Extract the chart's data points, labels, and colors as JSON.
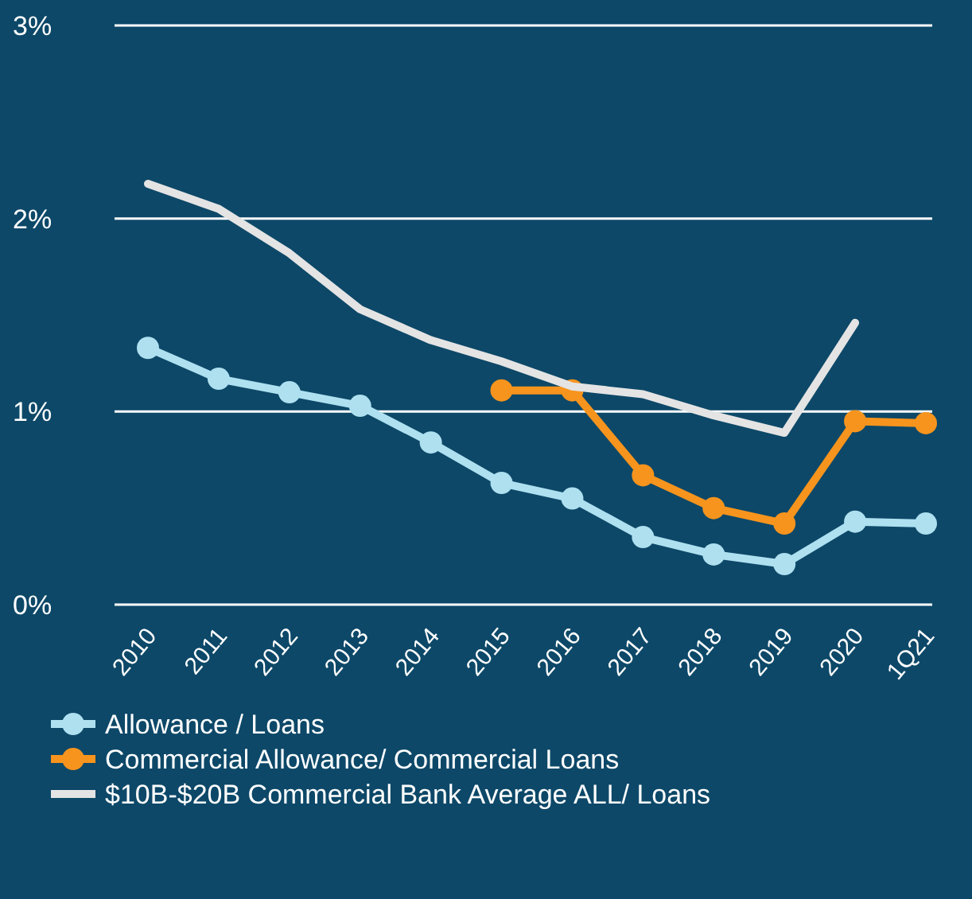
{
  "chart_data": {
    "type": "line",
    "categories": [
      "2010",
      "2011",
      "2012",
      "2013",
      "2014",
      "2015",
      "2016",
      "2017",
      "2018",
      "2019",
      "2020",
      "1Q21"
    ],
    "ylim": [
      0,
      3
    ],
    "yticks": [
      {
        "value": 0,
        "label": "0%"
      },
      {
        "value": 1,
        "label": "1%"
      },
      {
        "value": 2,
        "label": "2%"
      },
      {
        "value": 3,
        "label": "3%"
      }
    ],
    "grid": "y",
    "legend": "bottom",
    "line_style": "solid",
    "series": [
      {
        "name": "Allowance / Loans",
        "color": "#aee0f0",
        "marker": "circle",
        "values": [
          1.33,
          1.17,
          1.1,
          1.03,
          0.84,
          0.63,
          0.55,
          0.35,
          0.26,
          0.21,
          0.43,
          0.42
        ]
      },
      {
        "name": "Commercial Allowance/ Commercial Loans",
        "color": "#f7941d",
        "marker": "circle",
        "values": [
          null,
          null,
          null,
          null,
          null,
          1.11,
          1.11,
          0.67,
          0.5,
          0.42,
          0.95,
          0.94
        ]
      },
      {
        "name": "$10B-$20B Commercial Bank Average ALL/ Loans",
        "color": "#e4e4e4",
        "marker": "none",
        "values": [
          2.18,
          2.05,
          1.82,
          1.53,
          1.37,
          1.26,
          1.13,
          1.09,
          0.98,
          0.89,
          1.46,
          null
        ]
      }
    ]
  }
}
